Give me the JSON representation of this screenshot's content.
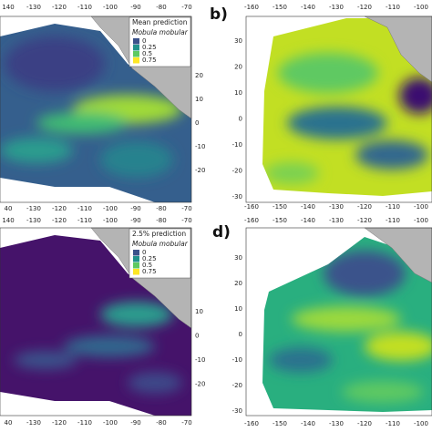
{
  "panels": [
    {
      "top_ticks": [
        "140",
        "-130",
        "-120",
        "-110",
        "-100",
        "-90",
        "-80",
        "-70"
      ],
      "side_ticks": [
        "20",
        "10",
        "0",
        "-10",
        "-20"
      ],
      "bottom_ticks": [
        "40",
        "-130",
        "-120",
        "-110",
        "-100",
        "-90",
        "-80",
        "-70"
      ],
      "legend": {
        "title": "Mean prediction",
        "species": "Mobula mobular",
        "levels": [
          "0",
          "0.25",
          "0.5",
          "0.75"
        ]
      }
    },
    {
      "label": "b)",
      "top_ticks": [
        "-160",
        "-150",
        "-140",
        "-130",
        "-120",
        "-110",
        "-100"
      ],
      "side_ticks": [
        "30",
        "20",
        "10",
        "0",
        "-10",
        "-20",
        "-30"
      ],
      "bottom_ticks": [
        "-160",
        "-150",
        "-140",
        "-130",
        "-120",
        "-110",
        "-100"
      ]
    },
    {
      "top_ticks": [
        "140",
        "-130",
        "-120",
        "-110",
        "-100",
        "-90",
        "-80",
        "-70"
      ],
      "side_ticks": [
        "10",
        "0",
        "-10",
        "-20"
      ],
      "bottom_ticks": [
        "40",
        "-130",
        "-120",
        "-110",
        "-100",
        "-90",
        "-80",
        "-70"
      ],
      "legend": {
        "title": "2.5% prediction",
        "species": "Mobula mobular",
        "levels": [
          "0",
          "0.25",
          "0.5",
          "0.75"
        ]
      }
    },
    {
      "label": "d)",
      "top_ticks": [
        "-160",
        "-150",
        "-140",
        "-130",
        "-120",
        "-110",
        "-100"
      ],
      "side_ticks": [
        "30",
        "20",
        "10",
        "0",
        "-10",
        "-20",
        "-30"
      ],
      "bottom_ticks": [
        "-160",
        "-150",
        "-140",
        "-130",
        "-120",
        "-110",
        "-100"
      ]
    }
  ]
}
